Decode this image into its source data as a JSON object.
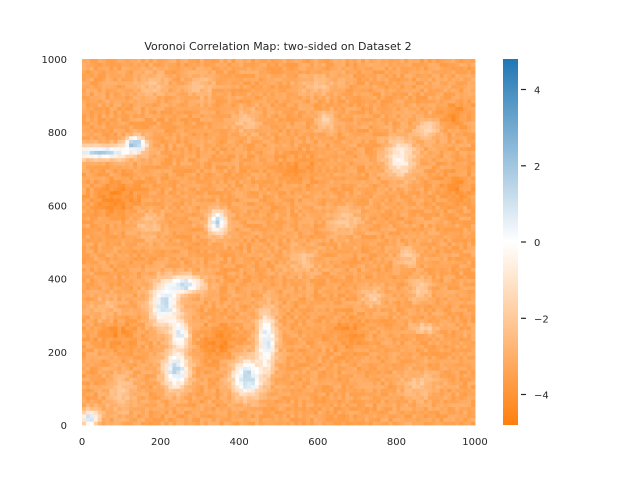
{
  "chart_data": {
    "type": "heatmap",
    "title": "Voronoi Correlation Map: two-sided on Dataset 2",
    "xlabel": "",
    "ylabel": "",
    "xlim": [
      0,
      1000
    ],
    "ylim": [
      0,
      1000
    ],
    "x_ticks": [
      0,
      200,
      400,
      600,
      800,
      1000
    ],
    "y_ticks": [
      0,
      200,
      400,
      600,
      800,
      1000
    ],
    "grid": false,
    "colorbar": {
      "range": [
        -4.8,
        4.8
      ],
      "ticks": [
        -4,
        -2,
        0,
        2,
        4
      ],
      "tick_labels": [
        "−4",
        "−2",
        "0",
        "2",
        "4"
      ],
      "colors": {
        "negative": "#ff7f0e",
        "zero": "#ffffff",
        "positive": "#1f77b4"
      }
    },
    "background_value": -3.3,
    "features": [
      {
        "x": 50,
        "y": 745,
        "rx": 90,
        "ry": 20,
        "value": 1.6
      },
      {
        "x": 135,
        "y": 770,
        "rx": 30,
        "ry": 20,
        "value": 2.2
      },
      {
        "x": 345,
        "y": 555,
        "rx": 25,
        "ry": 35,
        "value": 1.3
      },
      {
        "x": 210,
        "y": 330,
        "rx": 40,
        "ry": 65,
        "value": 1.2
      },
      {
        "x": 265,
        "y": 385,
        "rx": 45,
        "ry": 25,
        "value": 1.4
      },
      {
        "x": 250,
        "y": 250,
        "rx": 25,
        "ry": 40,
        "value": 0.6
      },
      {
        "x": 240,
        "y": 150,
        "rx": 35,
        "ry": 55,
        "value": 1.4
      },
      {
        "x": 420,
        "y": 130,
        "rx": 40,
        "ry": 55,
        "value": 1.6
      },
      {
        "x": 470,
        "y": 230,
        "rx": 25,
        "ry": 85,
        "value": 1.0
      },
      {
        "x": 20,
        "y": 20,
        "rx": 25,
        "ry": 25,
        "value": 1.2
      },
      {
        "x": 810,
        "y": 730,
        "rx": 40,
        "ry": 55,
        "value": -0.3
      },
      {
        "x": 880,
        "y": 810,
        "rx": 30,
        "ry": 30,
        "value": -1.6
      },
      {
        "x": 620,
        "y": 830,
        "rx": 25,
        "ry": 25,
        "value": -1.6
      },
      {
        "x": 740,
        "y": 350,
        "rx": 30,
        "ry": 30,
        "value": -1.9
      },
      {
        "x": 860,
        "y": 370,
        "rx": 25,
        "ry": 35,
        "value": -1.7
      },
      {
        "x": 870,
        "y": 265,
        "rx": 35,
        "ry": 15,
        "value": -1.7
      },
      {
        "x": 100,
        "y": 85,
        "rx": 40,
        "ry": 60,
        "value": -2.2
      },
      {
        "x": 860,
        "y": 110,
        "rx": 50,
        "ry": 40,
        "value": -2.2
      },
      {
        "x": 420,
        "y": 830,
        "rx": 40,
        "ry": 40,
        "value": -2.3
      },
      {
        "x": 170,
        "y": 550,
        "rx": 40,
        "ry": 40,
        "value": -2.3
      },
      {
        "x": 670,
        "y": 560,
        "rx": 45,
        "ry": 45,
        "value": -2.2
      },
      {
        "x": 560,
        "y": 450,
        "rx": 45,
        "ry": 45,
        "value": -2.4
      },
      {
        "x": 830,
        "y": 460,
        "rx": 30,
        "ry": 30,
        "value": -2.1
      },
      {
        "x": 60,
        "y": 320,
        "rx": 40,
        "ry": 40,
        "value": -2.5
      },
      {
        "x": 300,
        "y": 930,
        "rx": 40,
        "ry": 40,
        "value": -2.4
      },
      {
        "x": 180,
        "y": 930,
        "rx": 40,
        "ry": 40,
        "value": -2.4
      },
      {
        "x": 600,
        "y": 930,
        "rx": 60,
        "ry": 30,
        "value": -2.3
      },
      {
        "x": 950,
        "y": 850,
        "rx": 30,
        "ry": 30,
        "value": -4.2
      },
      {
        "x": 90,
        "y": 620,
        "rx": 60,
        "ry": 50,
        "value": -4.2
      },
      {
        "x": 90,
        "y": 250,
        "rx": 50,
        "ry": 40,
        "value": -4.0
      },
      {
        "x": 350,
        "y": 230,
        "rx": 45,
        "ry": 45,
        "value": -4.2
      },
      {
        "x": 680,
        "y": 250,
        "rx": 50,
        "ry": 50,
        "value": -3.9
      },
      {
        "x": 950,
        "y": 650,
        "rx": 40,
        "ry": 40,
        "value": -4.0
      },
      {
        "x": 560,
        "y": 700,
        "rx": 50,
        "ry": 40,
        "value": -3.9
      }
    ]
  }
}
